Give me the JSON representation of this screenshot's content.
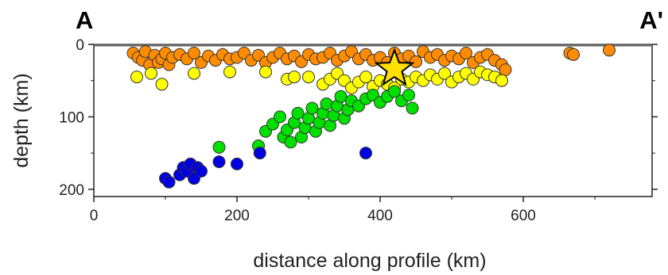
{
  "chart_data": {
    "type": "scatter",
    "title": "",
    "corner_labels": [
      "A",
      "A'"
    ],
    "xlabel": "distance along profile (km)",
    "ylabel": "depth (km)",
    "xlim": [
      0,
      780
    ],
    "ylim": [
      210,
      0
    ],
    "xticks": [
      0,
      200,
      400,
      600
    ],
    "yticks": [
      0,
      100,
      200
    ],
    "grid": false,
    "colors": {
      "orange": "#ff8c00",
      "yellow": "#ffff00",
      "green": "#00e000",
      "blue": "#0000e0",
      "star": "#ffe000",
      "axis": "#222222"
    },
    "series": [
      {
        "color": "#ff8c00",
        "points": [
          [
            55,
            12
          ],
          [
            62,
            18
          ],
          [
            68,
            22
          ],
          [
            72,
            10
          ],
          [
            78,
            28
          ],
          [
            85,
            15
          ],
          [
            90,
            25
          ],
          [
            95,
            20
          ],
          [
            100,
            12
          ],
          [
            105,
            28
          ],
          [
            110,
            18
          ],
          [
            120,
            14
          ],
          [
            130,
            20
          ],
          [
            140,
            12
          ],
          [
            150,
            25
          ],
          [
            160,
            16
          ],
          [
            170,
            22
          ],
          [
            180,
            14
          ],
          [
            190,
            20
          ],
          [
            200,
            18
          ],
          [
            210,
            12
          ],
          [
            220,
            22
          ],
          [
            230,
            15
          ],
          [
            240,
            25
          ],
          [
            250,
            18
          ],
          [
            260,
            12
          ],
          [
            270,
            20
          ],
          [
            280,
            16
          ],
          [
            290,
            24
          ],
          [
            300,
            14
          ],
          [
            310,
            20
          ],
          [
            320,
            18
          ],
          [
            330,
            12
          ],
          [
            340,
            22
          ],
          [
            350,
            16
          ],
          [
            360,
            10
          ],
          [
            370,
            20
          ],
          [
            380,
            14
          ],
          [
            390,
            22
          ],
          [
            400,
            18
          ],
          [
            410,
            25
          ],
          [
            420,
            12
          ],
          [
            430,
            20
          ],
          [
            440,
            16
          ],
          [
            450,
            24
          ],
          [
            460,
            10
          ],
          [
            470,
            18
          ],
          [
            480,
            14
          ],
          [
            490,
            22
          ],
          [
            500,
            16
          ],
          [
            510,
            20
          ],
          [
            520,
            12
          ],
          [
            530,
            25
          ],
          [
            540,
            18
          ],
          [
            550,
            14
          ],
          [
            560,
            22
          ],
          [
            570,
            28
          ],
          [
            575,
            35
          ],
          [
            665,
            12
          ],
          [
            670,
            14
          ],
          [
            720,
            8
          ]
        ]
      },
      {
        "color": "#ffff00",
        "points": [
          [
            60,
            45
          ],
          [
            80,
            40
          ],
          [
            95,
            55
          ],
          [
            140,
            40
          ],
          [
            190,
            38
          ],
          [
            240,
            38
          ],
          [
            270,
            48
          ],
          [
            280,
            45
          ],
          [
            300,
            45
          ],
          [
            320,
            55
          ],
          [
            330,
            48
          ],
          [
            340,
            40
          ],
          [
            350,
            50
          ],
          [
            360,
            60
          ],
          [
            370,
            52
          ],
          [
            380,
            45
          ],
          [
            390,
            58
          ],
          [
            400,
            50
          ],
          [
            410,
            55
          ],
          [
            420,
            60
          ],
          [
            430,
            48
          ],
          [
            440,
            52
          ],
          [
            450,
            45
          ],
          [
            460,
            50
          ],
          [
            470,
            42
          ],
          [
            480,
            48
          ],
          [
            490,
            40
          ],
          [
            500,
            52
          ],
          [
            510,
            45
          ],
          [
            520,
            40
          ],
          [
            530,
            48
          ],
          [
            540,
            38
          ],
          [
            550,
            42
          ],
          [
            560,
            45
          ],
          [
            570,
            50
          ]
        ]
      },
      {
        "color": "#00e000",
        "points": [
          [
            175,
            142
          ],
          [
            230,
            140
          ],
          [
            240,
            120
          ],
          [
            250,
            110
          ],
          [
            260,
            100
          ],
          [
            265,
            128
          ],
          [
            270,
            118
          ],
          [
            275,
            135
          ],
          [
            280,
            108
          ],
          [
            285,
            95
          ],
          [
            290,
            128
          ],
          [
            295,
            115
          ],
          [
            300,
            102
          ],
          [
            305,
            88
          ],
          [
            310,
            120
          ],
          [
            315,
            108
          ],
          [
            320,
            95
          ],
          [
            325,
            82
          ],
          [
            330,
            112
          ],
          [
            335,
            98
          ],
          [
            340,
            85
          ],
          [
            345,
            72
          ],
          [
            350,
            102
          ],
          [
            355,
            90
          ],
          [
            360,
            78
          ],
          [
            370,
            85
          ],
          [
            380,
            75
          ],
          [
            390,
            70
          ],
          [
            400,
            80
          ],
          [
            410,
            72
          ],
          [
            420,
            65
          ],
          [
            430,
            78
          ],
          [
            440,
            70
          ],
          [
            445,
            88
          ]
        ]
      },
      {
        "color": "#0000e0",
        "points": [
          [
            100,
            185
          ],
          [
            105,
            190
          ],
          [
            120,
            180
          ],
          [
            125,
            170
          ],
          [
            130,
            175
          ],
          [
            135,
            165
          ],
          [
            140,
            185
          ],
          [
            145,
            170
          ],
          [
            150,
            175
          ],
          [
            175,
            162
          ],
          [
            200,
            165
          ],
          [
            232,
            150
          ],
          [
            380,
            150
          ]
        ]
      }
    ],
    "star": [
      420,
      34
    ]
  }
}
